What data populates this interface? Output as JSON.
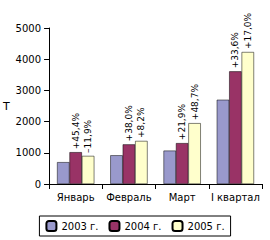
{
  "chart_data": {
    "type": "bar",
    "y_label": "Т",
    "categories": [
      "Январь",
      "Февраль",
      "Март",
      "I квартал"
    ],
    "series": [
      {
        "name": "2003 г.",
        "color": "#9999cc",
        "values": [
          700,
          920,
          1070,
          2700
        ]
      },
      {
        "name": "2004 г.",
        "color": "#993366",
        "values": [
          1020,
          1270,
          1310,
          3610
        ],
        "annotations": [
          "+45,4%",
          "+38,0%",
          "+21,9%",
          "+33,6%"
        ]
      },
      {
        "name": "2005 г.",
        "color": "#ffffcc",
        "values": [
          900,
          1380,
          1950,
          4230
        ],
        "annotations": [
          "–11,9%",
          "+8,2%",
          "+48,7%",
          "+17,0%"
        ]
      }
    ],
    "ylim": [
      0,
      5000
    ],
    "yticks": [
      0,
      1000,
      2000,
      3000,
      4000,
      5000
    ],
    "grid": false,
    "legend": "bottom"
  }
}
